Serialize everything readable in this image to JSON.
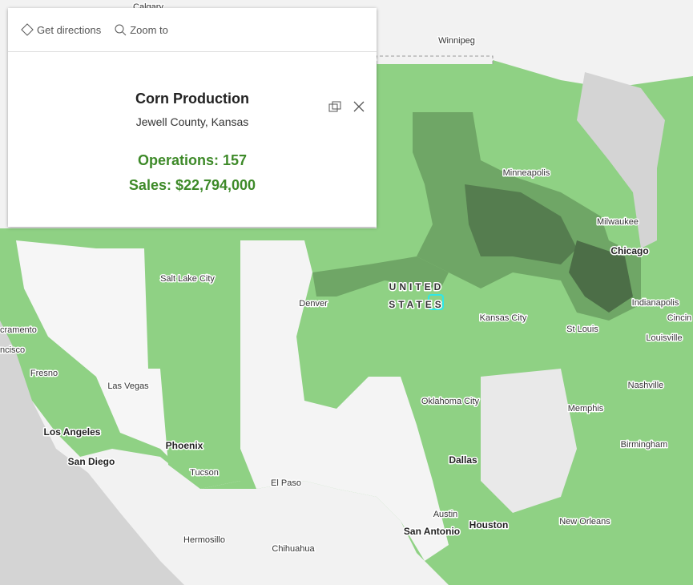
{
  "popup": {
    "actions": [
      "Get directions",
      "Zoom to"
    ],
    "title": "Corn Production",
    "subtitle": "Jewell County, Kansas",
    "fields": [
      "Operations: 157",
      "Sales: $22,794,000"
    ]
  },
  "map": {
    "labels": [
      "Calgary",
      "Winnipeg",
      "Minneapolis",
      "Milwaukee",
      "Chicago",
      "Salt Lake City",
      "Denver",
      "UNITED",
      "STATES",
      "Kansas City",
      "Indianapolis",
      "St Louis",
      "Cincin",
      "Louisville",
      "cramento",
      "ncisco",
      "Fresno",
      "Las Vegas",
      "Nashville",
      "Oklahoma City",
      "Memphis",
      "Los Angeles",
      "Phoenix",
      "Birmingham",
      "San Diego",
      "Dallas",
      "Tucson",
      "El Paso",
      "Austin",
      "San Antonio",
      "Houston",
      "New Orleans",
      "Hermosillo",
      "Chihuahua"
    ]
  }
}
